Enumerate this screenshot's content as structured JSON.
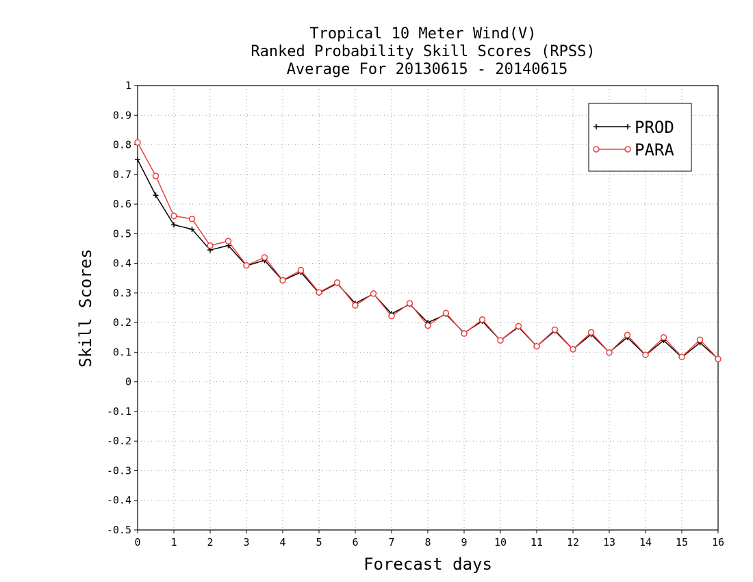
{
  "chart_data": {
    "type": "line",
    "title_lines": [
      "Tropical 10 Meter Wind(V)",
      "Ranked Probability Skill Scores (RPSS)",
      "Average For 20130615 - 20140615"
    ],
    "xlabel": "Forecast days",
    "ylabel": "Skill Scores",
    "xlim": [
      0,
      16
    ],
    "ylim": [
      -0.5,
      1
    ],
    "x_ticks": [
      0,
      1,
      2,
      3,
      4,
      5,
      6,
      7,
      8,
      9,
      10,
      11,
      12,
      13,
      14,
      15,
      16
    ],
    "y_ticks": [
      -0.5,
      -0.4,
      -0.3,
      -0.2,
      -0.1,
      0,
      0.1,
      0.2,
      0.3,
      0.4,
      0.5,
      0.6,
      0.7,
      0.8,
      0.9,
      1
    ],
    "y_tick_labels": [
      "-0.5",
      "-0.4",
      "-0.3",
      "-0.2",
      "-0.1",
      "0",
      "0.1",
      "0.2",
      "0.3",
      "0.4",
      "0.5",
      "0.6",
      "0.7",
      "0.8",
      "0.9",
      "1"
    ],
    "grid": true,
    "legend_position": "top-right",
    "x": [
      0,
      0.5,
      1,
      1.5,
      2,
      2.5,
      3,
      3.5,
      4,
      4.5,
      5,
      5.5,
      6,
      6.5,
      7,
      7.5,
      8,
      8.5,
      9,
      9.5,
      10,
      10.5,
      11,
      11.5,
      12,
      12.5,
      13,
      13.5,
      14,
      14.5,
      15,
      15.5,
      16
    ],
    "series": [
      {
        "name": "PROD",
        "color": "#000000",
        "marker": "plus",
        "values": [
          0.75,
          0.63,
          0.53,
          0.515,
          0.445,
          0.46,
          0.392,
          0.41,
          0.342,
          0.37,
          0.3,
          0.332,
          0.265,
          0.297,
          0.23,
          0.262,
          0.2,
          0.228,
          0.165,
          0.205,
          0.14,
          0.185,
          0.12,
          0.172,
          0.11,
          0.16,
          0.1,
          0.15,
          0.09,
          0.14,
          0.083,
          0.132,
          0.078
        ]
      },
      {
        "name": "PARA",
        "color": "#e8403d",
        "marker": "circle",
        "values": [
          0.808,
          0.695,
          0.56,
          0.55,
          0.46,
          0.475,
          0.393,
          0.42,
          0.343,
          0.377,
          0.302,
          0.335,
          0.258,
          0.298,
          0.222,
          0.265,
          0.19,
          0.232,
          0.163,
          0.21,
          0.14,
          0.188,
          0.12,
          0.176,
          0.11,
          0.167,
          0.099,
          0.158,
          0.091,
          0.15,
          0.084,
          0.142,
          0.077
        ]
      }
    ]
  }
}
